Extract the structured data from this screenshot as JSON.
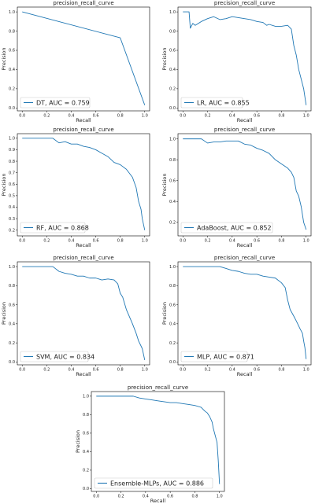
{
  "figure": {
    "background": "#ffffff",
    "line_color": "#1f77b4"
  },
  "chart_data": [
    {
      "type": "line",
      "id": "dt",
      "title": "precision_recall_curve",
      "xlabel": "Recall",
      "ylabel": "Precision",
      "xlim": [
        -0.04,
        1.04
      ],
      "ylim": [
        -0.03,
        1.05
      ],
      "xticks": [
        "0.0",
        "0.2",
        "0.4",
        "0.6",
        "0.8",
        "1.0"
      ],
      "yticks": [
        "0.0",
        "0.2",
        "0.4",
        "0.6",
        "0.8",
        "1.0"
      ],
      "legend": "DT, AUC = 0.759",
      "legend_position": "lower left",
      "series": [
        {
          "x": [
            0.0,
            0.8,
            1.0
          ],
          "y": [
            1.0,
            0.73,
            0.03
          ]
        }
      ]
    },
    {
      "type": "line",
      "id": "lr",
      "title": "precision_recall_curve",
      "xlabel": "Recall",
      "ylabel": "Precision",
      "xlim": [
        -0.04,
        1.04
      ],
      "ylim": [
        -0.03,
        1.05
      ],
      "xticks": [
        "0.0",
        "0.2",
        "0.4",
        "0.6",
        "0.8",
        "1.0"
      ],
      "yticks": [
        "0.0",
        "0.2",
        "0.4",
        "0.6",
        "0.8",
        "1.0"
      ],
      "legend": "LR, AUC = 0.855",
      "legend_position": "lower left",
      "series": [
        {
          "x": [
            0.0,
            0.05,
            0.06,
            0.08,
            0.1,
            0.15,
            0.2,
            0.25,
            0.3,
            0.35,
            0.4,
            0.45,
            0.5,
            0.55,
            0.6,
            0.65,
            0.68,
            0.7,
            0.75,
            0.8,
            0.85,
            0.88,
            0.9,
            0.92,
            0.94,
            0.96,
            0.98,
            1.0
          ],
          "y": [
            1.0,
            1.0,
            0.83,
            0.88,
            0.86,
            0.9,
            0.93,
            0.95,
            0.92,
            0.93,
            0.95,
            0.94,
            0.93,
            0.92,
            0.9,
            0.89,
            0.86,
            0.87,
            0.85,
            0.85,
            0.86,
            0.82,
            0.65,
            0.55,
            0.4,
            0.3,
            0.2,
            0.03
          ]
        }
      ]
    },
    {
      "type": "line",
      "id": "rf",
      "title": "precision_recall_curve",
      "xlabel": "Recall",
      "ylabel": "Precision",
      "xlim": [
        -0.04,
        1.04
      ],
      "ylim": [
        0.15,
        1.04
      ],
      "xticks": [
        "0.0",
        "0.2",
        "0.4",
        "0.6",
        "0.8",
        "1.0"
      ],
      "yticks": [
        "0.2",
        "0.3",
        "0.4",
        "0.5",
        "0.6",
        "0.7",
        "0.8",
        "0.9",
        "1.0"
      ],
      "legend": "RF, AUC = 0.868",
      "legend_position": "lower left",
      "series": [
        {
          "x": [
            0.0,
            0.25,
            0.3,
            0.35,
            0.4,
            0.45,
            0.5,
            0.55,
            0.6,
            0.65,
            0.7,
            0.75,
            0.8,
            0.85,
            0.9,
            0.93,
            0.95,
            0.97,
            0.98,
            1.0
          ],
          "y": [
            1.0,
            1.0,
            0.96,
            0.97,
            0.95,
            0.95,
            0.93,
            0.92,
            0.9,
            0.87,
            0.84,
            0.79,
            0.77,
            0.73,
            0.66,
            0.57,
            0.45,
            0.38,
            0.3,
            0.2
          ]
        }
      ]
    },
    {
      "type": "line",
      "id": "ada",
      "title": "precision_recall_curve",
      "xlabel": "Recall",
      "ylabel": "Precision",
      "xlim": [
        -0.04,
        1.04
      ],
      "ylim": [
        0.07,
        1.05
      ],
      "xticks": [
        "0.0",
        "0.2",
        "0.4",
        "0.6",
        "0.8",
        "1.0"
      ],
      "yticks": [
        "0.2",
        "0.4",
        "0.6",
        "0.8",
        "1.0"
      ],
      "legend": "AdaBoost, AUC = 0.852",
      "legend_position": "lower left",
      "series": [
        {
          "x": [
            0.0,
            0.15,
            0.2,
            0.25,
            0.3,
            0.35,
            0.4,
            0.45,
            0.5,
            0.55,
            0.6,
            0.65,
            0.7,
            0.75,
            0.8,
            0.85,
            0.88,
            0.9,
            0.92,
            0.94,
            0.96,
            0.98,
            1.0
          ],
          "y": [
            1.0,
            1.0,
            0.96,
            0.97,
            0.97,
            0.98,
            0.98,
            0.98,
            0.95,
            0.94,
            0.91,
            0.89,
            0.86,
            0.8,
            0.76,
            0.72,
            0.68,
            0.63,
            0.5,
            0.45,
            0.35,
            0.2,
            0.13
          ]
        }
      ]
    },
    {
      "type": "line",
      "id": "svm",
      "title": "precision_recall_curve",
      "xlabel": "Recall",
      "ylabel": "Precision",
      "xlim": [
        -0.04,
        1.04
      ],
      "ylim": [
        -0.03,
        1.05
      ],
      "xticks": [
        "0.0",
        "0.2",
        "0.4",
        "0.6",
        "0.8",
        "1.0"
      ],
      "yticks": [
        "0.0",
        "0.2",
        "0.4",
        "0.6",
        "0.8",
        "1.0"
      ],
      "legend": "SVM, AUC = 0.834",
      "legend_position": "lower left",
      "series": [
        {
          "x": [
            0.0,
            0.25,
            0.3,
            0.35,
            0.4,
            0.45,
            0.5,
            0.55,
            0.6,
            0.65,
            0.7,
            0.75,
            0.78,
            0.8,
            0.82,
            0.85,
            0.88,
            0.9,
            0.93,
            0.95,
            0.98,
            1.0
          ],
          "y": [
            1.0,
            1.0,
            0.95,
            0.93,
            0.92,
            0.9,
            0.9,
            0.88,
            0.88,
            0.86,
            0.87,
            0.86,
            0.82,
            0.72,
            0.68,
            0.55,
            0.46,
            0.4,
            0.3,
            0.22,
            0.14,
            0.02
          ]
        }
      ]
    },
    {
      "type": "line",
      "id": "mlp",
      "title": "precision_recall_curve",
      "xlabel": "Recall",
      "ylabel": "Precision",
      "xlim": [
        -0.04,
        1.04
      ],
      "ylim": [
        -0.03,
        1.05
      ],
      "xticks": [
        "0.0",
        "0.2",
        "0.4",
        "0.6",
        "0.8",
        "1.0"
      ],
      "yticks": [
        "0.0",
        "0.2",
        "0.4",
        "0.6",
        "0.8",
        "1.0"
      ],
      "legend": "MLP, AUC = 0.871",
      "legend_position": "lower left",
      "series": [
        {
          "x": [
            0.0,
            0.3,
            0.35,
            0.4,
            0.45,
            0.5,
            0.55,
            0.6,
            0.65,
            0.7,
            0.75,
            0.8,
            0.83,
            0.85,
            0.87,
            0.9,
            0.92,
            0.95,
            0.97,
            0.98,
            0.99,
            1.0
          ],
          "y": [
            1.0,
            1.0,
            0.98,
            0.96,
            0.95,
            0.93,
            0.92,
            0.92,
            0.9,
            0.89,
            0.88,
            0.83,
            0.78,
            0.65,
            0.55,
            0.48,
            0.43,
            0.35,
            0.3,
            0.22,
            0.15,
            0.03
          ]
        }
      ]
    },
    {
      "type": "line",
      "id": "ens",
      "title": "precision_recall_curve",
      "xlabel": "Recall",
      "ylabel": "Precision",
      "xlim": [
        -0.04,
        1.04
      ],
      "ylim": [
        -0.03,
        1.05
      ],
      "xticks": [
        "0.0",
        "0.2",
        "0.4",
        "0.6",
        "0.8",
        "1.0"
      ],
      "yticks": [
        "0.0",
        "0.2",
        "0.4",
        "0.6",
        "0.8",
        "1.0"
      ],
      "legend": "Ensemble-MLPs, AUC = 0.886",
      "legend_position": "lower left",
      "series": [
        {
          "x": [
            0.0,
            0.3,
            0.35,
            0.4,
            0.45,
            0.5,
            0.55,
            0.6,
            0.65,
            0.7,
            0.75,
            0.8,
            0.85,
            0.88,
            0.9,
            0.92,
            0.94,
            0.95,
            0.96,
            0.97,
            0.98,
            0.99,
            1.0
          ],
          "y": [
            1.0,
            1.0,
            0.98,
            0.97,
            0.96,
            0.95,
            0.94,
            0.93,
            0.93,
            0.92,
            0.91,
            0.9,
            0.88,
            0.84,
            0.82,
            0.78,
            0.72,
            0.65,
            0.6,
            0.55,
            0.5,
            0.3,
            0.05
          ]
        }
      ]
    }
  ]
}
